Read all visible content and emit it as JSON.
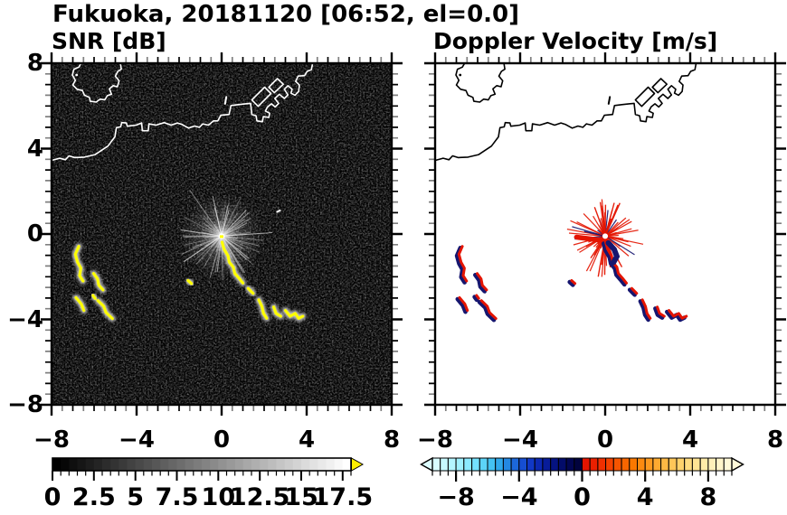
{
  "title": "Fukuoka, 20181120 [06:52, el=0.0]",
  "panels": {
    "snr": {
      "label": "SNR [dB]"
    },
    "doppler": {
      "label": "Doppler Velocity [m/s]"
    }
  },
  "axes": {
    "x_tick_labels": [
      "−8",
      "−4",
      "0",
      "4",
      "8"
    ],
    "x_tick_values": [
      -8,
      -4,
      0,
      4,
      8
    ],
    "y_tick_labels": [
      "8",
      "4",
      "0",
      "−4",
      "−8"
    ],
    "y_tick_values": [
      8,
      4,
      0,
      -4,
      -8
    ],
    "range": [
      -8,
      8
    ]
  },
  "colorbars": {
    "snr": {
      "min": 0,
      "max": 18,
      "cells": 36,
      "scale": "grayscale",
      "tick_labels": [
        "0",
        "2.5",
        "5",
        "7.5",
        "10",
        "12.5",
        "15",
        "17.5"
      ],
      "tick_values": [
        0,
        2.5,
        5,
        7.5,
        10,
        12.5,
        15,
        17.5
      ],
      "over_color": "#ffee00"
    },
    "doppler": {
      "min": -9.5,
      "max": 9.5,
      "cells": 38,
      "scale": "diverging cyan-blue-navy | red-orange-yellow",
      "tick_labels": [
        "−8",
        "−4",
        "0",
        "4",
        "8"
      ],
      "tick_values": [
        -8,
        -4,
        0,
        4,
        8
      ],
      "under_color": "#dcfdff",
      "over_color": "#fff9d8",
      "colors": [
        "#d8fdff",
        "#c8faff",
        "#b4f5ff",
        "#a0f0ff",
        "#8ceaff",
        "#74e2fe",
        "#5cd4f8",
        "#44c2f2",
        "#30a8ea",
        "#2488e2",
        "#1c68da",
        "#164ed2",
        "#1138c6",
        "#0c28b2",
        "#081c9a",
        "#051382",
        "#030c6a",
        "#020652",
        "#01033e",
        "#e41400",
        "#ea2000",
        "#f03000",
        "#f44200",
        "#f65400",
        "#f86600",
        "#fa7800",
        "#fb8a10",
        "#fc9a20",
        "#fdaa30",
        "#fdb844",
        "#fec658",
        "#fed26c",
        "#ffdc80",
        "#ffe494",
        "#ffeba8",
        "#fff0ba",
        "#fff5ca",
        "#fff9d8"
      ]
    }
  },
  "colors": {
    "echo_yellow": "#ffff00",
    "vel_positive_red": "#e41400",
    "vel_negative_navy": "#16166f",
    "coast_snr": "#ffffff",
    "coast_doppler": "#000000",
    "panel_bg_snr": "#020202",
    "panel_bg_doppler": "#ffffff"
  },
  "map": {
    "island": [
      [
        -6.55,
        8.1
      ],
      [
        -6.72,
        7.82
      ],
      [
        -6.95,
        7.72
      ],
      [
        -7.02,
        7.45
      ],
      [
        -6.88,
        7.2
      ],
      [
        -7.0,
        6.98
      ],
      [
        -6.8,
        6.78
      ],
      [
        -6.55,
        6.72
      ],
      [
        -6.45,
        6.5
      ],
      [
        -6.22,
        6.4
      ],
      [
        -6.18,
        6.22
      ],
      [
        -5.9,
        6.18
      ],
      [
        -5.72,
        6.32
      ],
      [
        -5.5,
        6.28
      ],
      [
        -5.38,
        6.48
      ],
      [
        -5.18,
        6.55
      ],
      [
        -5.28,
        6.8
      ],
      [
        -5.1,
        6.95
      ],
      [
        -4.9,
        6.9
      ],
      [
        -4.82,
        7.18
      ],
      [
        -5.0,
        7.4
      ],
      [
        -4.88,
        7.62
      ],
      [
        -4.72,
        7.72
      ],
      [
        -4.78,
        8.1
      ]
    ],
    "islet_dot": [
      -6.82,
      7.45
    ],
    "islet_dash": [
      [
        0.16,
        6.1
      ],
      [
        0.22,
        6.42
      ]
    ],
    "coast": [
      [
        -8.1,
        3.42
      ],
      [
        -7.62,
        3.55
      ],
      [
        -7.35,
        3.48
      ],
      [
        -7.18,
        3.66
      ],
      [
        -6.92,
        3.58
      ],
      [
        -6.45,
        3.6
      ],
      [
        -5.95,
        3.72
      ],
      [
        -5.35,
        4.12
      ],
      [
        -5.02,
        4.55
      ],
      [
        -4.95,
        4.98
      ],
      [
        -4.75,
        5.02
      ],
      [
        -4.7,
        5.22
      ],
      [
        -4.48,
        5.2
      ],
      [
        -4.44,
        5.05
      ],
      [
        -4.02,
        5.1
      ],
      [
        -3.76,
        5.2
      ],
      [
        -3.73,
        4.84
      ],
      [
        -3.45,
        4.84
      ],
      [
        -3.42,
        5.16
      ],
      [
        -3.08,
        5.1
      ],
      [
        -2.7,
        5.22
      ],
      [
        -2.38,
        5.1
      ],
      [
        -2.08,
        5.2
      ],
      [
        -1.88,
        5.14
      ],
      [
        -1.55,
        4.96
      ],
      [
        -1.28,
        5.06
      ],
      [
        -1.05,
        5.0
      ],
      [
        -0.88,
        5.16
      ],
      [
        -0.62,
        5.1
      ],
      [
        -0.38,
        5.3
      ],
      [
        -0.18,
        5.3
      ],
      [
        -0.04,
        5.56
      ],
      [
        0.35,
        5.6
      ],
      [
        0.44,
        6.02
      ],
      [
        0.78,
        6.06
      ],
      [
        1.12,
        6.1
      ],
      [
        1.36,
        6.12
      ],
      [
        1.42,
        5.6
      ],
      [
        1.62,
        5.54
      ],
      [
        1.66,
        5.3
      ],
      [
        1.92,
        5.26
      ],
      [
        1.96,
        5.5
      ],
      [
        2.22,
        5.46
      ],
      [
        2.26,
        5.66
      ],
      [
        2.06,
        5.76
      ],
      [
        2.16,
        5.96
      ],
      [
        2.34,
        6.1
      ],
      [
        2.52,
        5.95
      ],
      [
        2.68,
        6.12
      ],
      [
        2.5,
        6.35
      ],
      [
        2.72,
        6.55
      ],
      [
        2.95,
        6.35
      ],
      [
        3.12,
        6.52
      ],
      [
        2.95,
        6.78
      ],
      [
        3.12,
        6.95
      ],
      [
        3.32,
        6.78
      ],
      [
        3.26,
        6.6
      ],
      [
        3.45,
        6.5
      ],
      [
        3.62,
        6.68
      ],
      [
        3.66,
        6.98
      ],
      [
        3.48,
        7.15
      ],
      [
        3.6,
        7.4
      ],
      [
        3.9,
        7.42
      ],
      [
        4.02,
        7.62
      ],
      [
        4.22,
        7.7
      ],
      [
        4.3,
        8.1
      ]
    ],
    "piers": [
      [
        [
          1.72,
          5.98
        ],
        [
          2.32,
          6.58
        ],
        [
          2.02,
          6.88
        ],
        [
          1.42,
          6.28
        ],
        [
          1.72,
          5.98
        ]
      ],
      [
        [
          2.48,
          6.62
        ],
        [
          2.9,
          7.02
        ],
        [
          2.62,
          7.28
        ],
        [
          2.22,
          6.88
        ],
        [
          2.48,
          6.62
        ]
      ]
    ]
  },
  "features": {
    "origin_xy": [
      0,
      -0.1
    ],
    "streak_main": [
      [
        [
          0.02,
          -0.38
        ],
        [
          0.12,
          -0.72
        ],
        [
          0.3,
          -1.02
        ],
        [
          0.36,
          -1.32
        ],
        [
          0.55,
          -1.55
        ],
        [
          0.62,
          -1.85
        ],
        [
          0.82,
          -2.08
        ],
        [
          1.0,
          -2.3
        ]
      ],
      [
        [
          1.25,
          -2.55
        ],
        [
          1.48,
          -2.78
        ]
      ],
      [
        [
          1.75,
          -3.08
        ],
        [
          1.9,
          -3.4
        ],
        [
          1.97,
          -3.72
        ],
        [
          2.12,
          -3.95
        ]
      ],
      [
        [
          2.45,
          -3.42
        ],
        [
          2.56,
          -3.72
        ],
        [
          2.78,
          -3.85
        ]
      ],
      [
        [
          3.0,
          -3.58
        ],
        [
          3.22,
          -3.85
        ],
        [
          3.46,
          -3.72
        ],
        [
          3.62,
          -3.95
        ],
        [
          3.82,
          -3.85
        ]
      ],
      [
        [
          -1.58,
          -2.18
        ],
        [
          -1.42,
          -2.32
        ]
      ]
    ],
    "arcs_sw": [
      [
        [
          -6.72,
          -0.58
        ],
        [
          -6.88,
          -0.95
        ],
        [
          -6.78,
          -1.32
        ],
        [
          -6.62,
          -1.6
        ],
        [
          -6.68,
          -1.95
        ],
        [
          -6.52,
          -2.2
        ]
      ],
      [
        [
          -6.02,
          -1.85
        ],
        [
          -5.84,
          -2.1
        ],
        [
          -5.78,
          -2.4
        ],
        [
          -5.58,
          -2.62
        ]
      ],
      [
        [
          -6.85,
          -2.98
        ],
        [
          -6.6,
          -3.28
        ],
        [
          -6.48,
          -3.58
        ]
      ],
      [
        [
          -5.82,
          -3.12
        ],
        [
          -5.55,
          -3.38
        ],
        [
          -5.44,
          -3.68
        ],
        [
          -5.14,
          -3.96
        ]
      ],
      [
        [
          -6.05,
          -2.88
        ],
        [
          -5.95,
          -3.02
        ]
      ]
    ],
    "white_dash_xy": [
      [
        2.58,
        1.02
      ],
      [
        2.78,
        1.12
      ]
    ],
    "doppler_navy_cluster": [
      [
        0.15,
        -0.42
      ],
      [
        0.42,
        -0.72
      ],
      [
        0.55,
        -1.05
      ],
      [
        0.4,
        -1.32
      ]
    ],
    "doppler_left_ray": [
      [
        -1.35,
        -0.15
      ],
      [
        -0.3,
        -0.28
      ]
    ]
  },
  "chart_data": {
    "type": "heatmap",
    "title": "Fukuoka, 20181120 [06:52, el=0.0]",
    "panels": [
      {
        "title": "SNR [dB]",
        "xlim": [
          -8,
          8
        ],
        "ylim": [
          -8,
          8
        ],
        "grid": false,
        "colorbar": {
          "scale": "grayscale",
          "range": [
            0,
            18
          ],
          "ticks": [
            0,
            2.5,
            5,
            7.5,
            10,
            12.5,
            15,
            17.5
          ],
          "over_arrow": "yellow"
        },
        "features": [
          {
            "name": "radar-origin-ground-clutter",
            "center_xy": [
              0,
              -0.1
            ],
            "value": "bright white starburst of high SNR rays"
          },
          {
            "name": "echo-streak-southeast",
            "from_xy": [
              0,
              -0.4
            ],
            "to_xy": [
              3.8,
              -3.9
            ],
            "value": "saturated > 18 dB (yellow) with gray halo"
          },
          {
            "name": "echo-arcs-southwest",
            "from_xy": [
              -6.9,
              -0.6
            ],
            "to_xy": [
              -5.1,
              -4.0
            ],
            "value": "saturated > 18 dB (yellow) with gray halo"
          },
          {
            "name": "small-echo",
            "at_xy": [
              -1.5,
              -2.25
            ],
            "value": "> 18 dB"
          },
          {
            "name": "coastline",
            "value": "white outline of Fukuoka coast, island NW, harbor piers NE"
          }
        ]
      },
      {
        "title": "Doppler Velocity [m/s]",
        "xlim": [
          -8,
          8
        ],
        "ylim": [
          -8,
          8
        ],
        "grid": false,
        "colorbar": {
          "scale": "cyan-blue-navy to red-orange-yellow diverging",
          "range": [
            -9.5,
            9.5
          ],
          "ticks": [
            -8,
            -4,
            0,
            4,
            8
          ]
        },
        "features": [
          {
            "name": "radar-origin-clutter",
            "center_xy": [
              0,
              -0.1
            ],
            "value": "red rays with navy patch just SE of origin"
          },
          {
            "name": "echo-streak-southeast",
            "from_xy": [
              0,
              -0.4
            ],
            "to_xy": [
              3.8,
              -3.9
            ],
            "value": "positive velocities (red) with negative (navy) edges"
          },
          {
            "name": "echo-arcs-southwest",
            "from_xy": [
              -6.9,
              -0.6
            ],
            "to_xy": [
              -5.1,
              -4.0
            ],
            "value": "positive (red) with navy fringe"
          },
          {
            "name": "small-echo",
            "at_xy": [
              -1.5,
              -2.25
            ],
            "value": "red"
          },
          {
            "name": "coastline",
            "value": "black outline, same geometry as left panel"
          }
        ]
      }
    ]
  }
}
